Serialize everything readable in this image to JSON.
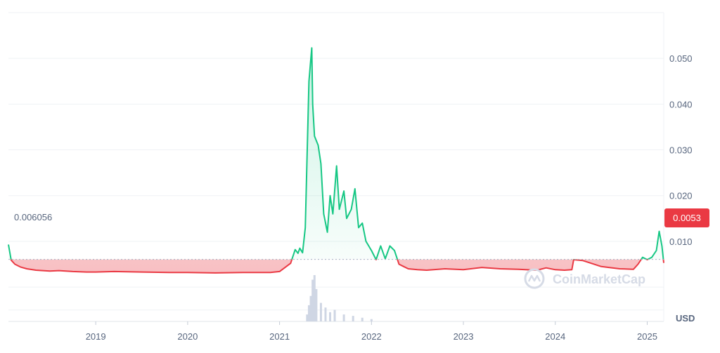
{
  "chart_data": {
    "type": "area",
    "baseline_value": 0.006056,
    "baseline_label": "0.006056",
    "current_price_label": "0.0053",
    "currency": "USD",
    "watermark": "CoinMarketCap",
    "x_ticks": [
      "2019",
      "2020",
      "2021",
      "2022",
      "2023",
      "2024",
      "2025"
    ],
    "x_tick_dates": [
      2019.0,
      2020.0,
      2021.0,
      2022.0,
      2023.0,
      2024.0,
      2025.0
    ],
    "x_range": [
      2018.05,
      2025.18
    ],
    "y_ticks": [
      "0.010",
      "0.020",
      "0.030",
      "0.040",
      "0.050"
    ],
    "y_tick_values": [
      0.01,
      0.02,
      0.03,
      0.04,
      0.05
    ],
    "ylim": [
      -0.0075,
      0.06
    ],
    "grid": true,
    "colors": {
      "above": "#16c784",
      "below": "#ea3943",
      "grid": "#eff2f5",
      "axis_text": "#58667e",
      "volume": "#cfd6e4"
    },
    "series": [
      {
        "x": [
          2018.05,
          2018.08,
          2018.12,
          2018.18,
          2018.25,
          2018.35,
          2018.5,
          2018.6,
          2018.75,
          2018.9,
          2019.0,
          2019.2,
          2019.5,
          2019.8,
          2020.0,
          2020.3,
          2020.6,
          2020.9,
          2021.0,
          2021.12,
          2021.17,
          2021.2,
          2021.22,
          2021.25,
          2021.28,
          2021.32,
          2021.35,
          2021.36,
          2021.38,
          2021.42,
          2021.45,
          2021.48,
          2021.52,
          2021.55,
          2021.58,
          2021.62,
          2021.65,
          2021.7,
          2021.73,
          2021.78,
          2021.82,
          2021.86,
          2021.9,
          2021.94,
          2022.0,
          2022.05,
          2022.1,
          2022.15,
          2022.2,
          2022.25,
          2022.3,
          2022.35,
          2022.4,
          2022.5,
          2022.6,
          2022.8,
          2023.0,
          2023.2,
          2023.4,
          2023.6,
          2023.8,
          2023.9,
          2024.0,
          2024.1,
          2024.18,
          2024.2,
          2024.3,
          2024.5,
          2024.7,
          2024.85,
          2024.9,
          2024.95,
          2025.0,
          2025.05,
          2025.1,
          2025.13,
          2025.16,
          2025.18
        ],
        "y": [
          0.0093,
          0.0059,
          0.005,
          0.0044,
          0.004,
          0.0037,
          0.0035,
          0.0036,
          0.0034,
          0.0033,
          0.0033,
          0.0034,
          0.0033,
          0.0032,
          0.0032,
          0.0031,
          0.0032,
          0.0032,
          0.0034,
          0.0052,
          0.0082,
          0.0074,
          0.0085,
          0.0075,
          0.013,
          0.045,
          0.0523,
          0.04,
          0.033,
          0.031,
          0.027,
          0.016,
          0.012,
          0.02,
          0.016,
          0.0265,
          0.017,
          0.021,
          0.015,
          0.017,
          0.0215,
          0.013,
          0.014,
          0.01,
          0.008,
          0.006,
          0.009,
          0.0062,
          0.009,
          0.008,
          0.005,
          0.0045,
          0.004,
          0.0038,
          0.0037,
          0.004,
          0.0038,
          0.0043,
          0.004,
          0.0039,
          0.0037,
          0.0042,
          0.0038,
          0.0037,
          0.0038,
          0.006,
          0.0058,
          0.0045,
          0.004,
          0.0039,
          0.005,
          0.0065,
          0.006,
          0.0065,
          0.008,
          0.0122,
          0.009,
          0.0053
        ]
      }
    ],
    "volume": {
      "x": [
        2021.3,
        2021.32,
        2021.34,
        2021.36,
        2021.38,
        2021.4,
        2021.45,
        2021.5,
        2021.55,
        2021.6,
        2021.7,
        2021.8,
        2021.9,
        2022.0
      ],
      "v": [
        0.15,
        0.35,
        0.55,
        0.9,
        1.0,
        0.7,
        0.4,
        0.3,
        0.2,
        0.25,
        0.15,
        0.12,
        0.08,
        0.05
      ]
    }
  }
}
